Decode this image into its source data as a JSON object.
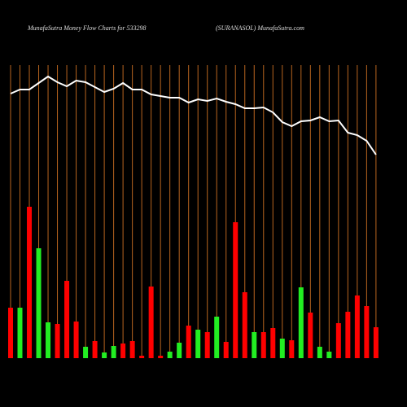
{
  "chart_data": {
    "type": "money_flow",
    "title": "MunafaSutra  Money Flow  Charts for 533298",
    "subtitle": "(SURANASOL) MunafaSutra.com",
    "grid_color": "#b8651f",
    "line_color": "#ffffff",
    "values": [
      62,
      62,
      186,
      135,
      44,
      42,
      95,
      45,
      14,
      21,
      7,
      15,
      18,
      21,
      3,
      88,
      3,
      8,
      19,
      40,
      35,
      32,
      51,
      20,
      167,
      81,
      32,
      32,
      37,
      24,
      22,
      87,
      56,
      14,
      8,
      43,
      57,
      77,
      64,
      38
    ],
    "colors": [
      "#ff0000",
      "#22ee22",
      "#ff0000",
      "#22ee22",
      "#22ee22",
      "#ff0000",
      "#ff0000",
      "#ff0000",
      "#22ee22",
      "#ff0000",
      "#22ee22",
      "#22ee22",
      "#ff0000",
      "#ff0000",
      "#ff0000",
      "#ff0000",
      "#ff0000",
      "#22ee22",
      "#22ee22",
      "#ff0000",
      "#22ee22",
      "#ff0000",
      "#22ee22",
      "#ff0000",
      "#ff0000",
      "#ff0000",
      "#22ee22",
      "#ff0000",
      "#ff0000",
      "#22ee22",
      "#ff0000",
      "#22ee22",
      "#ff0000",
      "#22ee22",
      "#22ee22",
      "#ff0000",
      "#ff0000",
      "#ff0000",
      "#ff0000",
      "#ff0000"
    ],
    "line": [
      325,
      330,
      330,
      338,
      346,
      339,
      334,
      341,
      339,
      333,
      327,
      331,
      338,
      330,
      330,
      324,
      322,
      320,
      320,
      314,
      318,
      316,
      319,
      315,
      312,
      307,
      307,
      308,
      302,
      290,
      285,
      291,
      292,
      296,
      291,
      292,
      277,
      274,
      267,
      250
    ]
  }
}
